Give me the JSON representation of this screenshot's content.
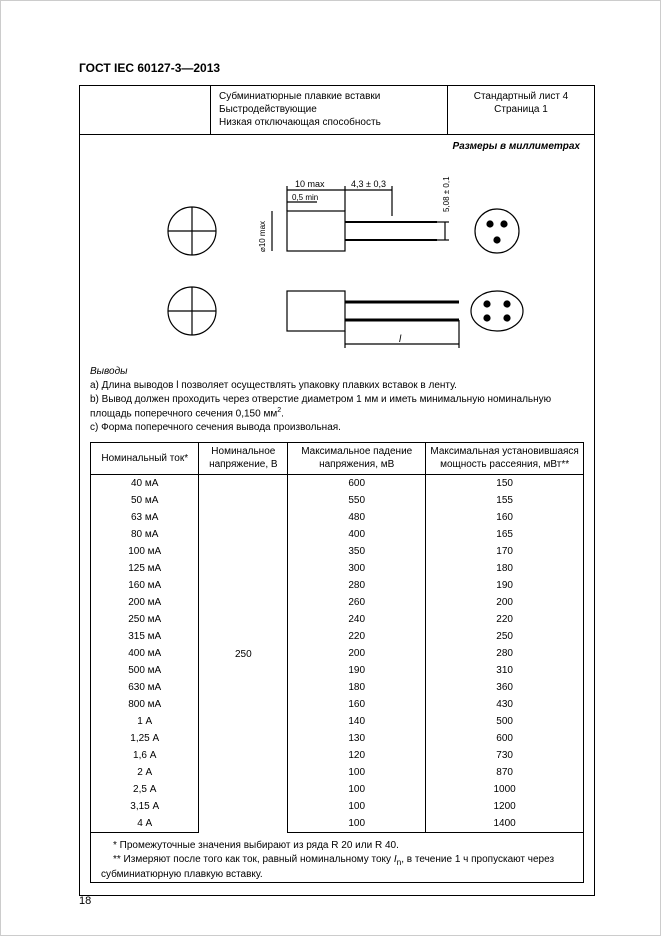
{
  "doc": {
    "title": "ГОСТ IEC 60127-3—2013",
    "page_number": "18"
  },
  "header": {
    "mid_line1": "Субминиатюрные плавкие вставки",
    "mid_line2": "Быстродействующие",
    "mid_line3": "Низкая отключающая способность",
    "right_line1": "Стандартный лист 4",
    "right_line2": "Страница 1"
  },
  "dim_note": "Размеры в миллиметрах",
  "drawing": {
    "labels": {
      "top_dim1": "10 max",
      "top_dim2": "4,3 ± 0,3",
      "top_dim3": "0,5 min",
      "side_dim": "5,08 ± 0,1",
      "dia": "⌀10 max",
      "len": "l"
    },
    "stroke": "#000000",
    "hatch": "#000000"
  },
  "sec_title": "Выводы",
  "notes": {
    "a": "a)  Длина выводов l позволяет осуществлять упаковку плавких вставок в ленту.",
    "b": "b)  Вывод должен проходить через отверстие диаметром 1 мм и иметь минимальную номинальную площадь поперечного сечения 0,150 мм",
    "b_sup": "2",
    "b_tail": ".",
    "c": "c)  Форма поперечного сечения вывода произвольная."
  },
  "table": {
    "headers": {
      "c1": "Номинальный ток*",
      "c2": "Номинальное напряжение, В",
      "c3": "Максимальное падение напряжения, мВ",
      "c4": "Максимальная установившаяся мощность рассеяния, мВт**"
    },
    "voltage": "250",
    "rows": [
      {
        "i": "40 мА",
        "v": "600",
        "p": "150"
      },
      {
        "i": "50 мА",
        "v": "550",
        "p": "155"
      },
      {
        "i": "63 мА",
        "v": "480",
        "p": "160"
      },
      {
        "i": "80 мА",
        "v": "400",
        "p": "165"
      },
      {
        "i": "100 мА",
        "v": "350",
        "p": "170"
      },
      {
        "i": "125 мА",
        "v": "300",
        "p": "180"
      },
      {
        "i": "160 мА",
        "v": "280",
        "p": "190"
      },
      {
        "i": "200 мА",
        "v": "260",
        "p": "200"
      },
      {
        "i": "250 мА",
        "v": "240",
        "p": "220"
      },
      {
        "i": "315 мА",
        "v": "220",
        "p": "250"
      },
      {
        "i": "400 мА",
        "v": "200",
        "p": "280"
      },
      {
        "i": "500 мА",
        "v": "190",
        "p": "310"
      },
      {
        "i": "630 мА",
        "v": "180",
        "p": "360"
      },
      {
        "i": "800 мА",
        "v": "160",
        "p": "430"
      },
      {
        "i": "1 А",
        "v": "140",
        "p": "500"
      },
      {
        "i": "1,25 А",
        "v": "130",
        "p": "600"
      },
      {
        "i": "1,6 А",
        "v": "120",
        "p": "730"
      },
      {
        "i": "2 А",
        "v": "100",
        "p": "870"
      },
      {
        "i": "2,5 А",
        "v": "100",
        "p": "1000"
      },
      {
        "i": "3,15 А",
        "v": "100",
        "p": "1200"
      },
      {
        "i": "4 А",
        "v": "100",
        "p": "1400"
      }
    ]
  },
  "footnotes": {
    "f1": "* Промежуточные значения выбирают из ряда R 20 или R 40.",
    "f2_a": "** Измеряют после того как ток, равный номинальному току ",
    "f2_i": "I",
    "f2_sub": "n",
    "f2_b": ", в течение 1 ч пропускают через суб­миниатюрную плавкую вставку."
  }
}
